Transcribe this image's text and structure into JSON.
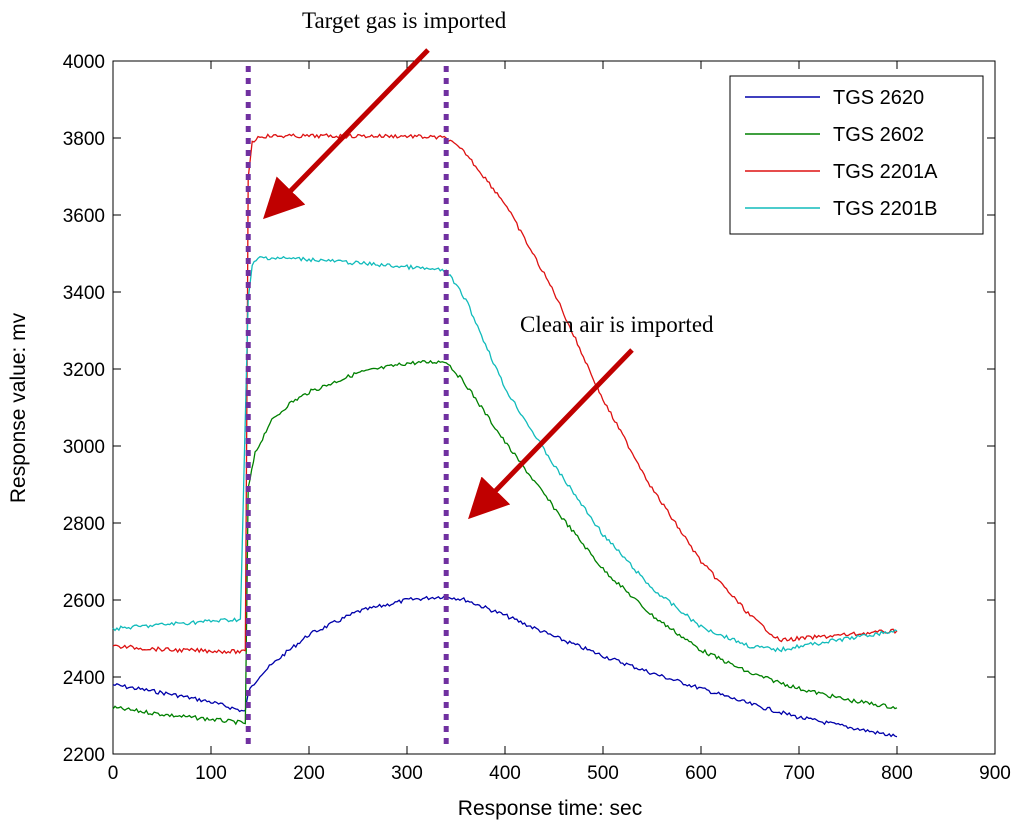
{
  "chart_data": {
    "type": "line",
    "title": "",
    "xlabel": "Response time: sec",
    "ylabel": "Response value: mv",
    "xlim": [
      0,
      900
    ],
    "ylim": [
      2200,
      4000
    ],
    "xticks": [
      0,
      100,
      200,
      300,
      400,
      500,
      600,
      700,
      800,
      900
    ],
    "yticks": [
      2200,
      2400,
      2600,
      2800,
      3000,
      3200,
      3400,
      3600,
      3800,
      4000
    ],
    "grid": false,
    "legend_position": "top-right",
    "series": [
      {
        "name": "TGS 2620",
        "color": "#0000aa",
        "x": [
          0,
          60,
          100,
          135,
          138,
          150,
          175,
          200,
          250,
          300,
          340,
          360,
          400,
          450,
          500,
          550,
          600,
          650,
          700,
          750,
          800
        ],
        "y": [
          2380,
          2355,
          2335,
          2310,
          2360,
          2405,
          2460,
          2510,
          2570,
          2600,
          2610,
          2600,
          2560,
          2505,
          2455,
          2410,
          2370,
          2330,
          2295,
          2270,
          2245
        ]
      },
      {
        "name": "TGS 2602",
        "color": "#008000",
        "x": [
          0,
          60,
          100,
          135,
          138,
          145,
          160,
          180,
          200,
          250,
          300,
          340,
          360,
          400,
          450,
          500,
          550,
          600,
          650,
          700,
          750,
          800
        ],
        "y": [
          2320,
          2300,
          2290,
          2280,
          2890,
          2980,
          3060,
          3110,
          3140,
          3190,
          3215,
          3220,
          3160,
          3010,
          2840,
          2680,
          2560,
          2470,
          2410,
          2370,
          2340,
          2320
        ]
      },
      {
        "name": "TGS 2201A",
        "color": "#dd1111",
        "x": [
          0,
          60,
          100,
          135,
          138,
          142,
          150,
          200,
          250,
          300,
          340,
          360,
          400,
          450,
          500,
          550,
          600,
          650,
          680,
          700,
          750,
          800
        ],
        "y": [
          2480,
          2470,
          2468,
          2465,
          3700,
          3790,
          3805,
          3805,
          3805,
          3805,
          3800,
          3760,
          3630,
          3400,
          3120,
          2890,
          2700,
          2560,
          2495,
          2500,
          2510,
          2520
        ]
      },
      {
        "name": "TGS 2201B",
        "color": "#11bbbb",
        "x": [
          0,
          60,
          100,
          130,
          138,
          142,
          150,
          200,
          250,
          300,
          340,
          360,
          400,
          450,
          500,
          550,
          600,
          650,
          680,
          700,
          750,
          800
        ],
        "y": [
          2525,
          2538,
          2545,
          2550,
          3380,
          3470,
          3490,
          3485,
          3475,
          3465,
          3455,
          3380,
          3150,
          2950,
          2770,
          2630,
          2530,
          2480,
          2470,
          2480,
          2500,
          2520
        ]
      }
    ],
    "vlines": [
      {
        "x": 138,
        "color": "#7030a0",
        "style": "dotted"
      },
      {
        "x": 340,
        "color": "#7030a0",
        "style": "dotted"
      }
    ],
    "annotations": [
      {
        "text": "Target gas is imported",
        "arrow_to": [
          150,
          3600
        ]
      },
      {
        "text": "Clean air is imported",
        "arrow_to": [
          360,
          2800
        ]
      }
    ]
  }
}
